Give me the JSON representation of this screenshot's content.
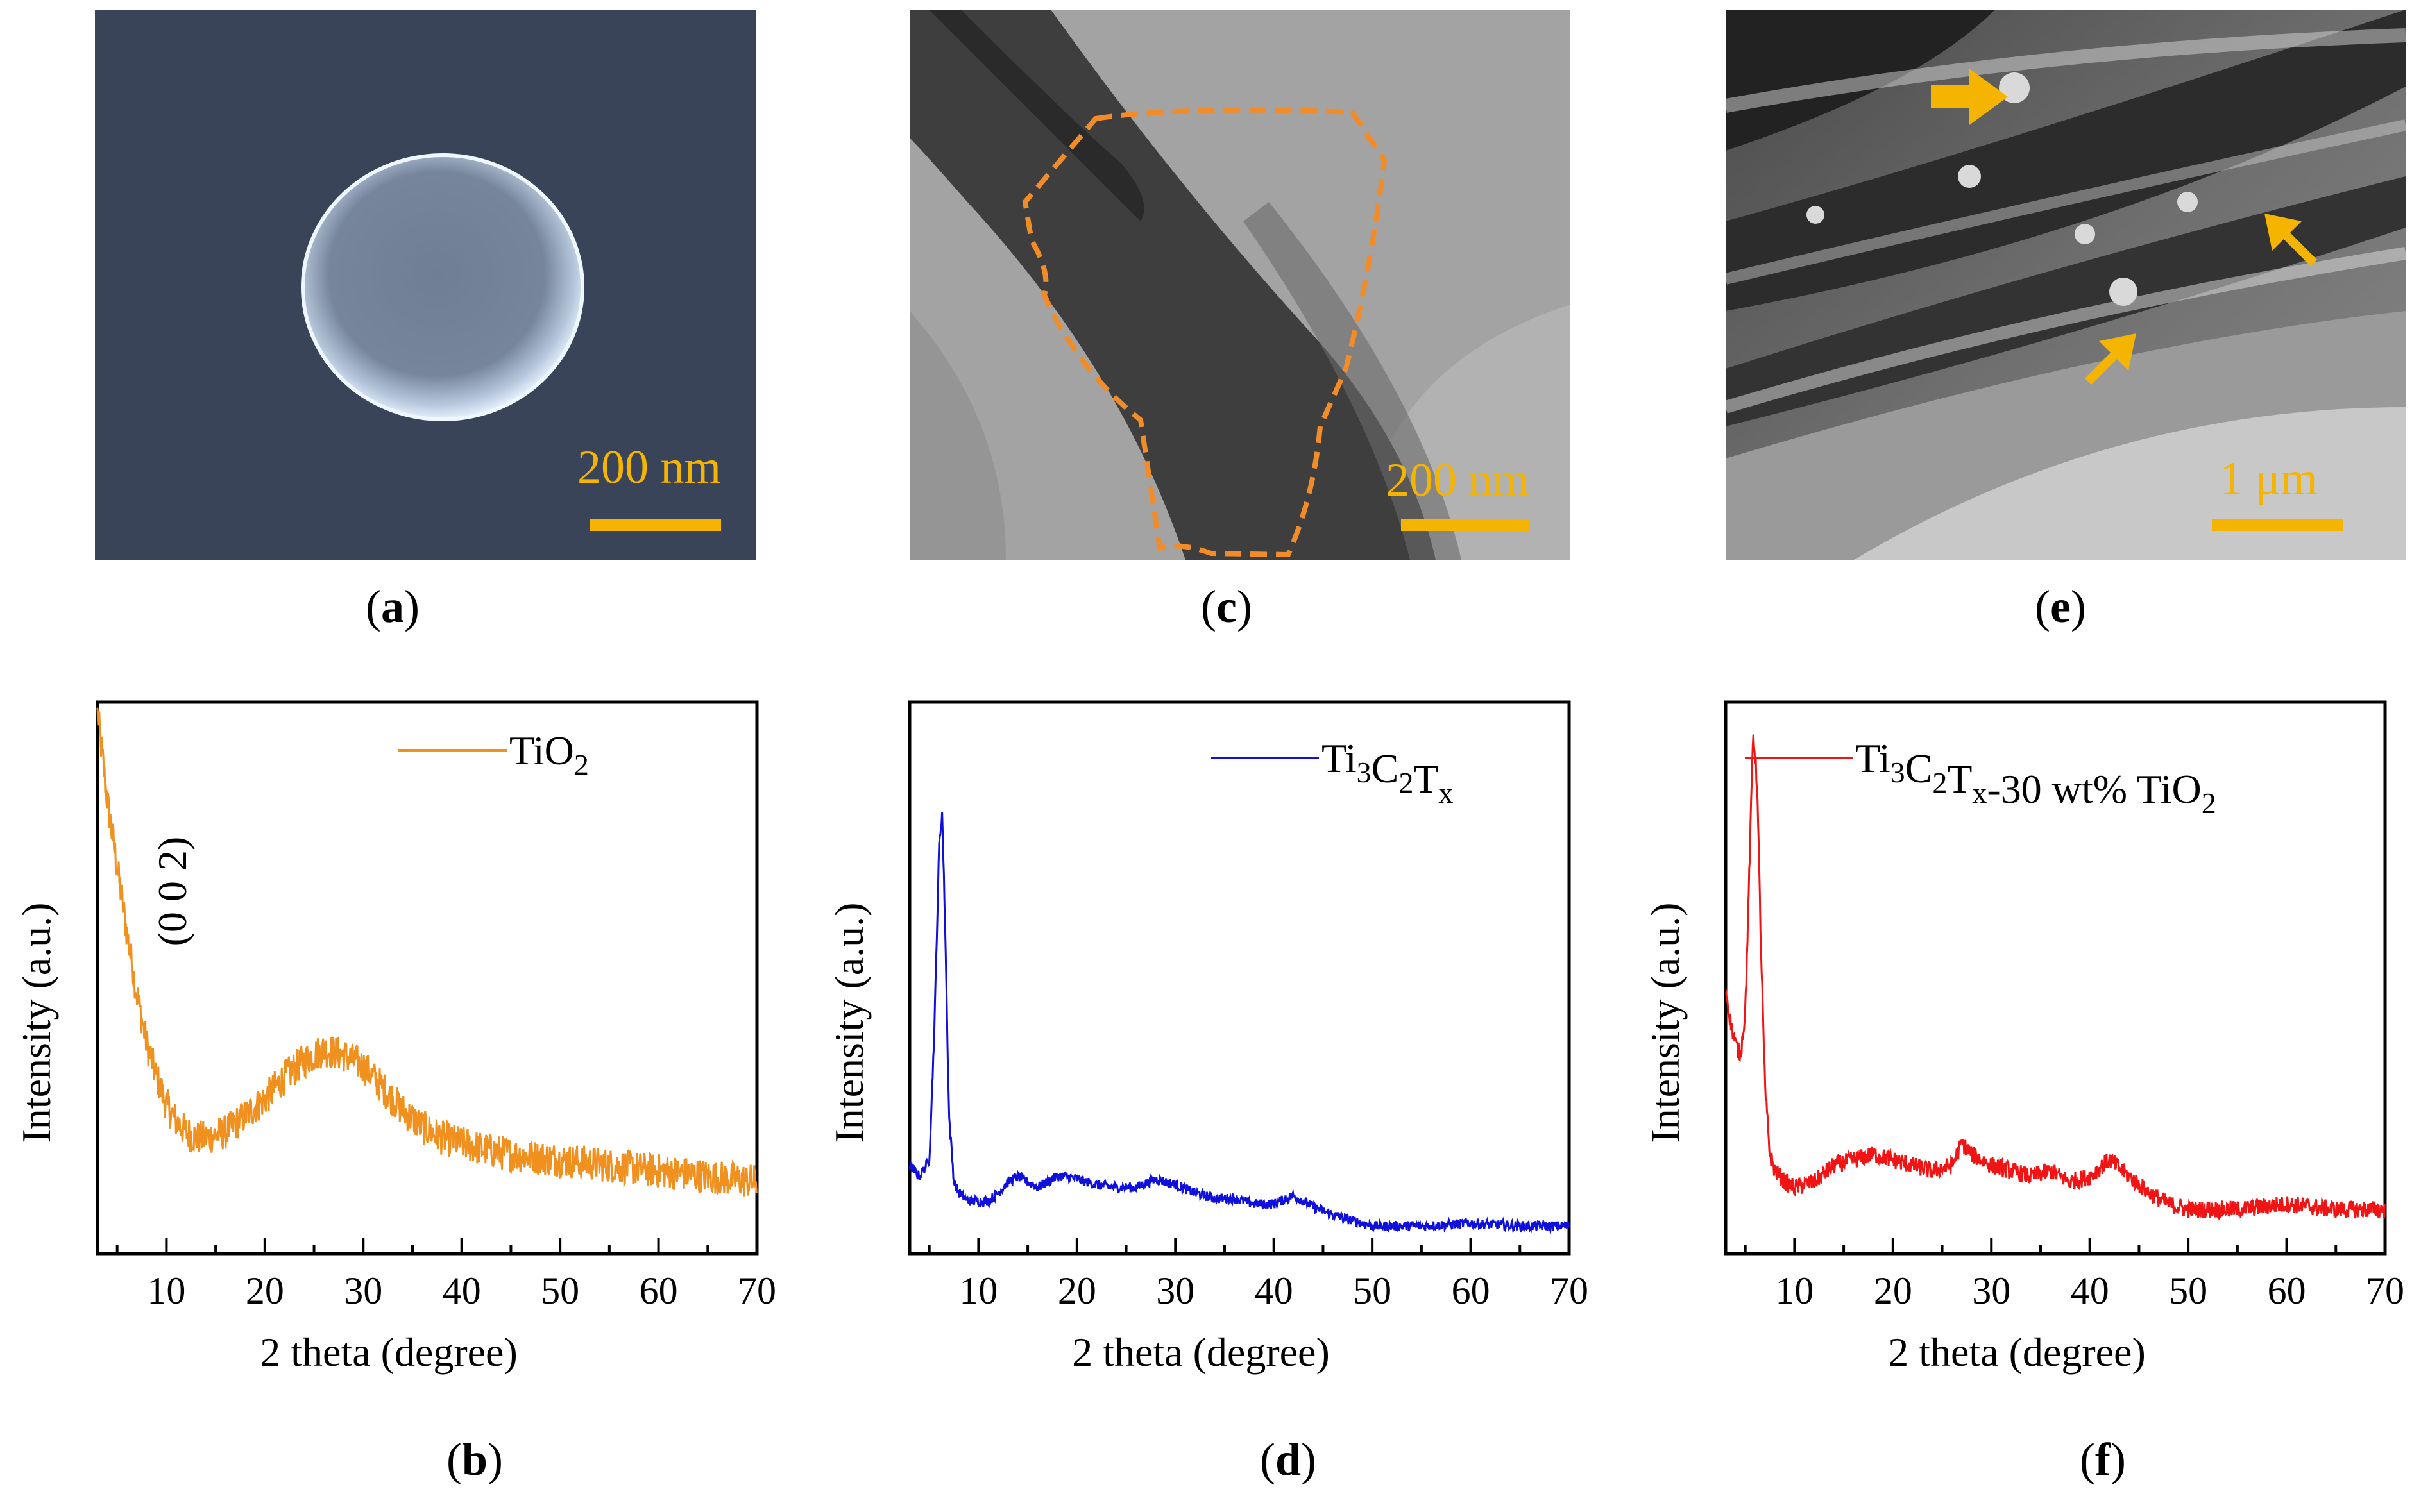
{
  "figure_panels": {
    "a": {
      "caption_letter": "a",
      "scale_label": "200 nm",
      "kind": "SEM image of TiO2 sphere"
    },
    "c": {
      "caption_letter": "c",
      "scale_label": "200 nm",
      "kind": "TEM image of Ti3C2Tx flake"
    },
    "e": {
      "caption_letter": "e",
      "scale_label": "1 μm",
      "kind": "SEM image of Ti3C2Tx-TiO2 composite"
    }
  },
  "colors": {
    "tio2": "#f0901e",
    "ti3c2tx": "#1010dc",
    "composite": "#f01414",
    "scale": "#f5b400"
  },
  "chart_data": [
    {
      "id": "b",
      "type": "line",
      "caption_letter": "b",
      "xlabel": "2 theta (degree)",
      "ylabel": "Intensity (a.u.)",
      "xlim": [
        3,
        70
      ],
      "ylim": [
        0,
        100
      ],
      "xticks": [
        10,
        20,
        30,
        40,
        50,
        60,
        70
      ],
      "legend": {
        "base": "TiO",
        "sub": "2",
        "position": "top-right"
      },
      "annotation": "(0 0 2)",
      "series": [
        {
          "name": "TiO2",
          "color": "#f0901e",
          "noise": 3.2,
          "x": [
            3,
            4,
            5,
            6,
            7,
            8,
            9,
            10,
            11,
            12,
            13,
            14,
            16,
            18,
            20,
            22,
            24,
            26,
            28,
            30,
            32,
            34,
            36,
            38,
            40,
            42,
            45,
            50,
            55,
            60,
            65,
            70
          ],
          "y": [
            98,
            82,
            70,
            58,
            47,
            38,
            32,
            27,
            24,
            22,
            21,
            21,
            22,
            25,
            28,
            32,
            35,
            37,
            36,
            34,
            30,
            26,
            23,
            21,
            20,
            19,
            18,
            17,
            16,
            15,
            14,
            13
          ]
        }
      ]
    },
    {
      "id": "d",
      "type": "line",
      "caption_letter": "d",
      "xlabel": "2 theta (degree)",
      "ylabel": "Intensity (a.u.)",
      "xlim": [
        3,
        70
      ],
      "ylim": [
        0,
        100
      ],
      "xticks": [
        10,
        20,
        30,
        40,
        50,
        60,
        70
      ],
      "legend": {
        "parts": [
          [
            "Ti",
            ""
          ],
          [
            "3",
            "sub"
          ],
          [
            "C",
            ""
          ],
          [
            "2",
            "sub"
          ],
          [
            "T",
            ""
          ],
          [
            "x",
            "sub"
          ]
        ],
        "position": "top-right"
      },
      "series": [
        {
          "name": "Ti3C2Tx",
          "color": "#1010dc",
          "noise": 0.9,
          "x": [
            3,
            4,
            5,
            5.5,
            6,
            6.3,
            6.6,
            7,
            7.5,
            8,
            9,
            10,
            11,
            12,
            13,
            14,
            15,
            16,
            17,
            18,
            19,
            20,
            22,
            24,
            26,
            28,
            30,
            32,
            34,
            36,
            38,
            40,
            42,
            44,
            46,
            48,
            50,
            55,
            60,
            65,
            70
          ],
          "y": [
            16,
            14,
            17,
            40,
            74,
            80,
            60,
            25,
            13,
            11,
            9.5,
            9.5,
            9.5,
            11,
            13,
            14,
            13,
            12,
            13,
            14,
            14,
            13.5,
            12.5,
            12,
            12,
            13.5,
            12.5,
            11,
            10,
            10,
            9,
            9,
            10.5,
            8.5,
            7,
            6,
            5,
            5,
            5.5,
            5,
            5
          ]
        }
      ]
    },
    {
      "id": "f",
      "type": "line",
      "caption_letter": "f",
      "xlabel": "2 theta (degree)",
      "ylabel": "Intensity (a.u.)",
      "xlim": [
        3,
        70
      ],
      "ylim": [
        0,
        100
      ],
      "xticks": [
        10,
        20,
        30,
        40,
        50,
        60,
        70
      ],
      "legend": {
        "parts": [
          [
            "Ti",
            ""
          ],
          [
            "3",
            "sub"
          ],
          [
            "C",
            ""
          ],
          [
            "2",
            "sub"
          ],
          [
            "T",
            ""
          ],
          [
            "x",
            "sub"
          ],
          [
            "-30 wt% TiO",
            ""
          ],
          [
            "2",
            "sub"
          ]
        ],
        "position": "top-left"
      },
      "series": [
        {
          "name": "Ti3C2Tx-30 wt% TiO2",
          "color": "#f01414",
          "noise": 1.6,
          "x": [
            3,
            3.5,
            4,
            4.5,
            5,
            5.5,
            5.8,
            6.2,
            6.6,
            7,
            7.5,
            8,
            9,
            10,
            12,
            14,
            16,
            18,
            20,
            22,
            24,
            26,
            27,
            28,
            30,
            32,
            34,
            36,
            38,
            40,
            42,
            44,
            46,
            48,
            50,
            55,
            60,
            65,
            70
          ],
          "y": [
            48,
            42,
            38,
            36,
            44,
            75,
            95,
            85,
            55,
            30,
            18,
            15,
            13,
            12,
            13,
            16,
            17,
            18,
            17,
            16,
            15,
            16,
            20,
            18,
            16,
            15,
            14,
            15,
            13,
            14,
            17,
            14,
            11,
            9,
            8,
            8,
            9,
            8,
            8
          ]
        }
      ]
    }
  ]
}
